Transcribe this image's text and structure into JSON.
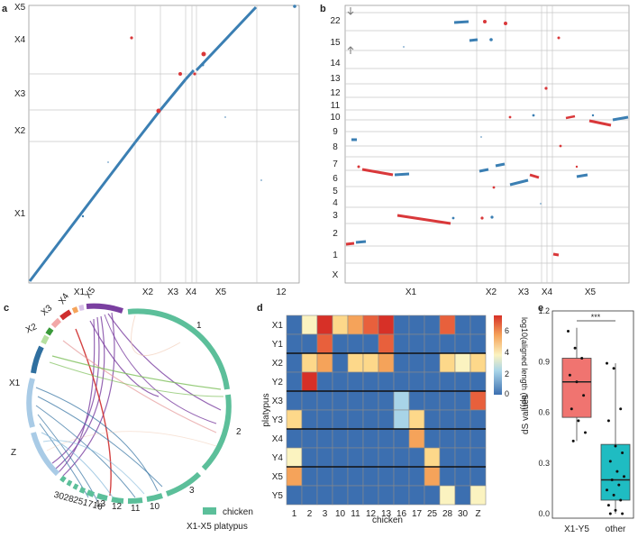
{
  "panels": {
    "a": {
      "label": "a",
      "y_labels": [
        "X5",
        "X4",
        "X3",
        "X2",
        "X1"
      ],
      "x_labels": [
        "X1",
        "X2",
        "X3",
        "X4",
        "X5",
        "12"
      ]
    },
    "b": {
      "label": "b",
      "y_labels": [
        "22",
        "15",
        "14",
        "13",
        "12",
        "11",
        "10",
        "9",
        "8",
        "7",
        "6",
        "5",
        "4",
        "3",
        "2",
        "1",
        "X"
      ],
      "x_labels": [
        "X1",
        "X2",
        "X3",
        "X4",
        "X5"
      ]
    },
    "c": {
      "label": "c",
      "left_labels": [
        "X5",
        "X4",
        "X3",
        "X2",
        "X1",
        "Z"
      ],
      "chicken_labels": [
        "1",
        "2",
        "3",
        "10",
        "11",
        "12",
        "13",
        "16",
        "17",
        "25",
        "28",
        "30"
      ],
      "bottom_run": "3028251716",
      "legend": {
        "chicken": "chicken",
        "platypus": "X1-X5 platypus"
      }
    },
    "d": {
      "label": "d",
      "ylabel": "platypus",
      "xlabel": "chicken",
      "rows": [
        "X1",
        "Y1",
        "X2",
        "Y2",
        "X3",
        "Y3",
        "X4",
        "Y4",
        "X5",
        "Y5"
      ],
      "cols": [
        "1",
        "2",
        "3",
        "10",
        "11",
        "12",
        "13",
        "16",
        "17",
        "25",
        "28",
        "30",
        "Z"
      ],
      "colorbar_title": "log10(aligned length (bp))",
      "colorbar_ticks": [
        "6",
        "4",
        "2",
        "0"
      ],
      "cells": [
        [
          0,
          2,
          6,
          3,
          4,
          5,
          6,
          0,
          0,
          0,
          5,
          0,
          0
        ],
        [
          0,
          0,
          5,
          0,
          0,
          0,
          5,
          0,
          0,
          0,
          0,
          0,
          0
        ],
        [
          0,
          3,
          4,
          0,
          3,
          3,
          4,
          0,
          0,
          0,
          3,
          2,
          3
        ],
        [
          0,
          6,
          0,
          0,
          0,
          0,
          0,
          0,
          0,
          0,
          0,
          0,
          0
        ],
        [
          0,
          0,
          0,
          0,
          0,
          0,
          0,
          1,
          0,
          0,
          0,
          0,
          5
        ],
        [
          3,
          0,
          0,
          0,
          0,
          0,
          0,
          1,
          3,
          0,
          0,
          0,
          0
        ],
        [
          0,
          0,
          0,
          0,
          0,
          0,
          0,
          0,
          4,
          0,
          0,
          0,
          0
        ],
        [
          2,
          0,
          0,
          0,
          0,
          0,
          0,
          0,
          0,
          3,
          0,
          0,
          0
        ],
        [
          4,
          0,
          0,
          0,
          0,
          0,
          0,
          0,
          0,
          4,
          0,
          0,
          0
        ],
        [
          0,
          0,
          0,
          0,
          0,
          0,
          0,
          0,
          0,
          0,
          2,
          0,
          2
        ]
      ]
    },
    "e": {
      "label": "e",
      "ylabel": "dS values",
      "yticks": [
        "1.2",
        "0.9",
        "0.6",
        "0.3",
        "0.0"
      ],
      "xlabels": [
        "X1-Y5",
        "other"
      ],
      "significance": "***"
    }
  },
  "chart_data": [
    {
      "type": "heatmap",
      "title": "",
      "xlabel": "chicken",
      "ylabel": "platypus",
      "rows": [
        "X1",
        "Y1",
        "X2",
        "Y2",
        "X3",
        "Y3",
        "X4",
        "Y4",
        "X5",
        "Y5"
      ],
      "cols": [
        "1",
        "2",
        "3",
        "10",
        "11",
        "12",
        "13",
        "16",
        "17",
        "25",
        "28",
        "30",
        "Z"
      ],
      "range": [
        0,
        7
      ]
    },
    {
      "type": "box",
      "ylabel": "dS values",
      "ylim": [
        0,
        1.2
      ],
      "categories": [
        "X1-Y5",
        "other"
      ],
      "series": [
        {
          "name": "X1-Y5",
          "q1": 0.57,
          "median": 0.78,
          "q3": 0.92,
          "min": 0.43,
          "max": 1.1,
          "points": [
            1.08,
            0.98,
            0.92,
            0.82,
            0.78,
            0.7,
            0.62,
            0.55,
            0.48,
            0.43
          ]
        },
        {
          "name": "other",
          "q1": 0.08,
          "median": 0.2,
          "q3": 0.41,
          "min": 0.0,
          "max": 0.89,
          "points": [
            0.89,
            0.86,
            0.62,
            0.55,
            0.4,
            0.36,
            0.31,
            0.25,
            0.22,
            0.2,
            0.17,
            0.14,
            0.11,
            0.08,
            0.05,
            0.02,
            0.0,
            0.0
          ]
        }
      ]
    }
  ]
}
